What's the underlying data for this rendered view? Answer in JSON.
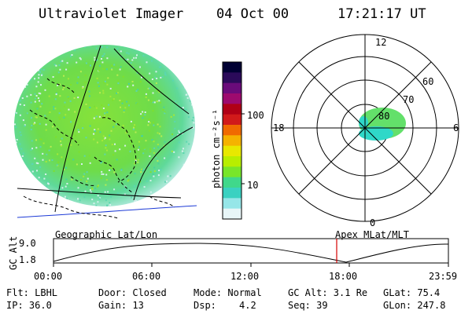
{
  "header": {
    "instrument": "Ultraviolet Imager",
    "date": "04 Oct 00",
    "time": "17:21:17 UT"
  },
  "colorbar": {
    "unit_label": "photon cm⁻²s⁻¹",
    "ticks": [
      "100",
      "10"
    ],
    "colors": [
      "#000033",
      "#2b0a5a",
      "#6a0b7a",
      "#9d0a6e",
      "#b00016",
      "#d11a1a",
      "#f06a00",
      "#f5b200",
      "#e8e800",
      "#b8ee00",
      "#78e62a",
      "#40d88b",
      "#3ad1c1",
      "#96e6e8",
      "#e8f6f8"
    ]
  },
  "polar_plot": {
    "mlt_labels": [
      "12",
      "18",
      "6",
      "0"
    ],
    "lat_labels": [
      "60",
      "70",
      "80"
    ],
    "oval_color": "#63e06a",
    "oval_edge_color": "#2fd8c8"
  },
  "earth_image": {
    "dominant_color": "#7fde3c",
    "edge_color": "#5bd8bf",
    "grid_color": "#000000",
    "equator_color": "#1c3ad6"
  },
  "coord_labels": {
    "left": "Geographic Lat/Lon",
    "right": "Apex MLat/MLT"
  },
  "altitude_panel": {
    "axis_label": "GC Alt",
    "y_ticks": [
      "9.0",
      "1.8"
    ],
    "x_ticks": [
      "00:00",
      "06:00",
      "12:00",
      "18:00",
      "23:59"
    ],
    "marker_color": "#d40000"
  },
  "info": {
    "flt": "Flt: LBHL",
    "ip": "IP: 36.0",
    "door": "Door: Closed",
    "gain": "Gain: 13",
    "mode": "Mode: Normal",
    "dsp_label": "Dsp:",
    "dsp_value": "4.2",
    "gc_alt": "GC Alt: 3.1 Re",
    "seq": "Seq: 39",
    "glat": "GLat: 75.4",
    "glon": "GLon: 247.8"
  }
}
